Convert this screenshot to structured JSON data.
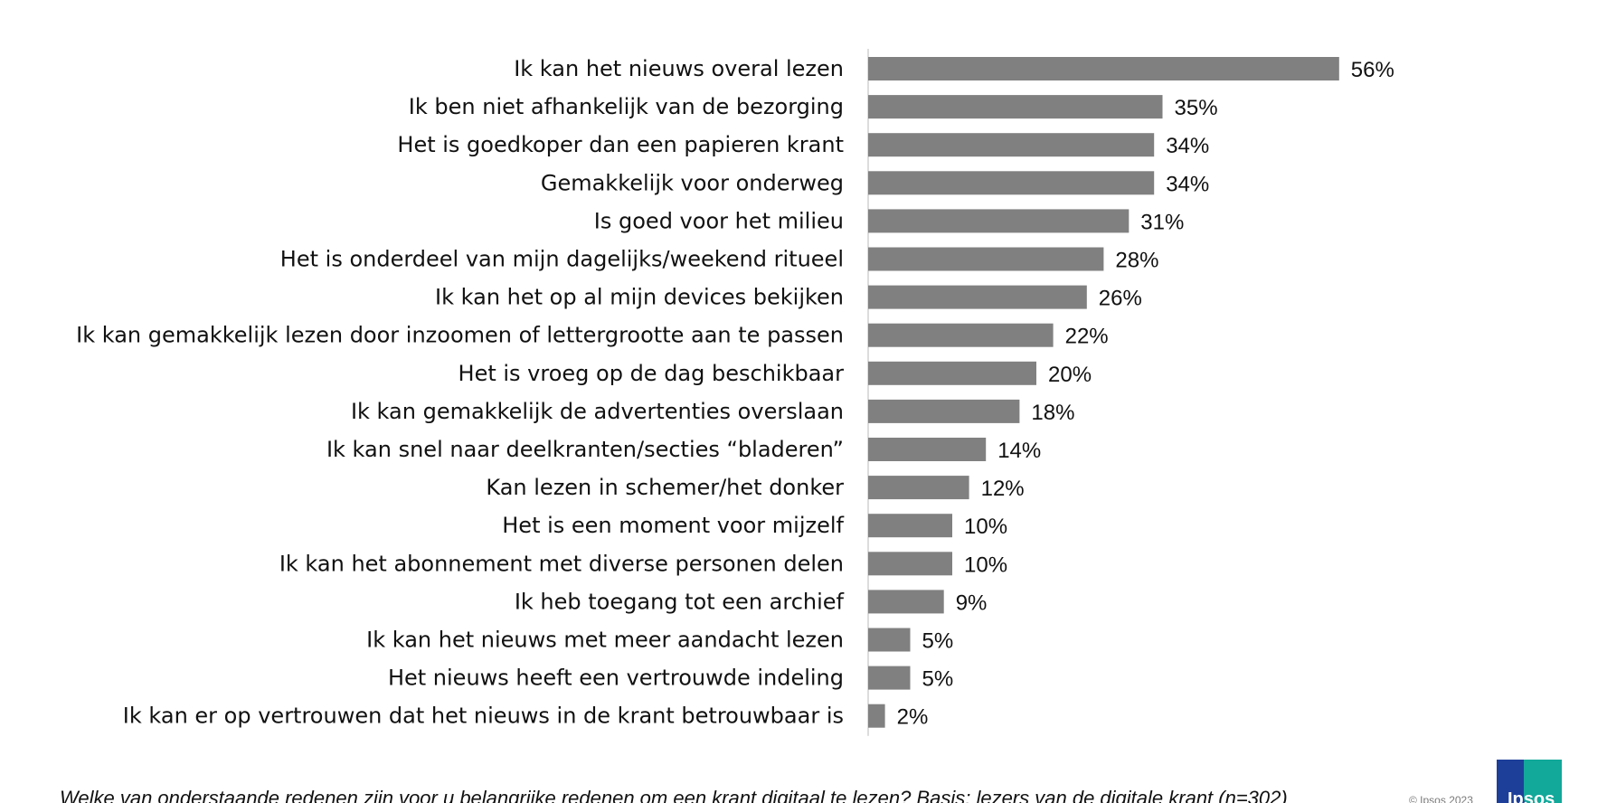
{
  "chart_data": {
    "type": "bar",
    "orientation": "horizontal",
    "categories": [
      "Ik kan het nieuws overal lezen",
      "Ik ben niet afhankelijk van de bezorging",
      "Het is goedkoper dan een papieren krant",
      "Gemakkelijk voor onderweg",
      "Is goed voor het milieu",
      "Het is onderdeel van mijn dagelijks/weekend ritueel",
      "Ik kan het op al mijn devices bekijken",
      "Ik kan gemakkelijk lezen door inzoomen of lettergrootte aan te passen",
      "Het is vroeg op de dag beschikbaar",
      "Ik kan gemakkelijk de advertenties overslaan",
      "Ik kan snel naar deelkranten/secties “bladeren”",
      "Kan lezen in schemer/het donker",
      "Het is een moment voor mijzelf",
      "Ik kan het abonnement met diverse personen delen",
      "Ik heb toegang tot een archief",
      "Ik kan het nieuws met meer aandacht lezen",
      "Het nieuws heeft een vertrouwde indeling",
      "Ik kan er op vertrouwen dat het nieuws in de krant betrouwbaar is"
    ],
    "values": [
      56,
      35,
      34,
      34,
      31,
      28,
      26,
      22,
      20,
      18,
      14,
      12,
      10,
      10,
      9,
      5,
      5,
      2
    ],
    "value_labels": [
      "56%",
      "35%",
      "34%",
      "34%",
      "31%",
      "28%",
      "26%",
      "22%",
      "20%",
      "18%",
      "14%",
      "12%",
      "10%",
      "10%",
      "9%",
      "5%",
      "5%",
      "2%"
    ],
    "bar_color": "#808080",
    "xlim": [
      0,
      60
    ],
    "grid": false,
    "legend": "none"
  },
  "footnote": "Welke van onderstaande redenen zijn voor u belangrijke redenen om een krant digitaal te lezen?   Basis: lezers van de digitale krant (n=302)",
  "copyright": "© Ipsos 2023",
  "logo": {
    "text": "Ipsos",
    "color_primary": "#1d3f9a",
    "color_secondary": "#12a89a"
  }
}
